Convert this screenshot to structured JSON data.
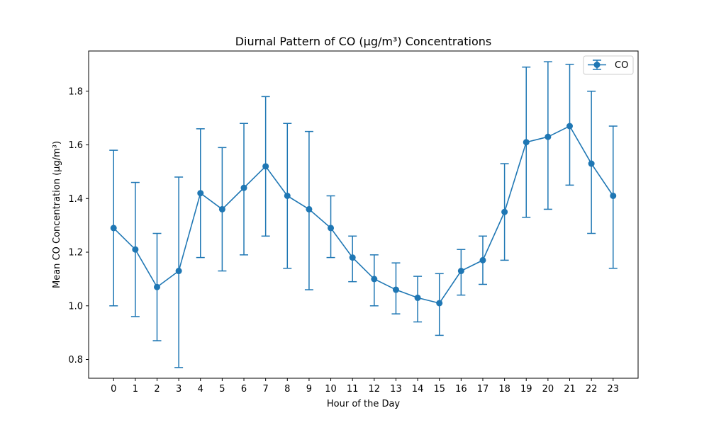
{
  "chart_data": {
    "type": "line",
    "title": "Diurnal Pattern of CO (µg/m³) Concentrations",
    "xlabel": "Hour of the Day",
    "ylabel": "Mean CO Concentration (µg/m³)",
    "x": [
      0,
      1,
      2,
      3,
      4,
      5,
      6,
      7,
      8,
      9,
      10,
      11,
      12,
      13,
      14,
      15,
      16,
      17,
      18,
      19,
      20,
      21,
      22,
      23
    ],
    "x_ticks": [
      "0",
      "1",
      "2",
      "3",
      "4",
      "5",
      "6",
      "7",
      "8",
      "9",
      "10",
      "11",
      "12",
      "13",
      "14",
      "15",
      "16",
      "17",
      "18",
      "19",
      "20",
      "21",
      "22",
      "23"
    ],
    "xlim": [
      -1.15,
      24.15
    ],
    "ylim": [
      0.73,
      1.95
    ],
    "y_ticks": [
      0.8,
      1.0,
      1.2,
      1.4,
      1.6,
      1.8
    ],
    "y_tick_labels": [
      "0.8",
      "1.0",
      "1.2",
      "1.4",
      "1.6",
      "1.8"
    ],
    "grid": false,
    "legend_position": "top-right",
    "color": "#1f77b4",
    "series": [
      {
        "name": "CO",
        "values": [
          1.29,
          1.21,
          1.07,
          1.13,
          1.42,
          1.36,
          1.44,
          1.52,
          1.41,
          1.36,
          1.29,
          1.18,
          1.1,
          1.06,
          1.03,
          1.01,
          1.13,
          1.17,
          1.35,
          1.61,
          1.63,
          1.67,
          1.53,
          1.41
        ],
        "error_low": [
          1.0,
          0.96,
          0.87,
          0.77,
          1.18,
          1.13,
          1.19,
          1.26,
          1.14,
          1.06,
          1.18,
          1.09,
          1.0,
          0.97,
          0.94,
          0.89,
          1.04,
          1.08,
          1.17,
          1.33,
          1.36,
          1.45,
          1.27,
          1.14
        ],
        "error_high": [
          1.58,
          1.46,
          1.27,
          1.48,
          1.66,
          1.59,
          1.68,
          1.78,
          1.68,
          1.65,
          1.41,
          1.26,
          1.19,
          1.16,
          1.11,
          1.12,
          1.21,
          1.26,
          1.53,
          1.89,
          1.91,
          1.9,
          1.8,
          1.67
        ]
      }
    ]
  }
}
